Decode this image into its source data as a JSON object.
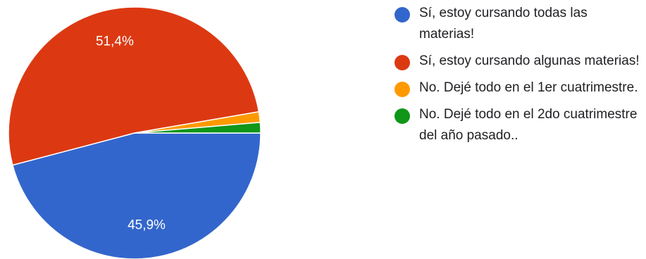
{
  "chart_data": {
    "type": "pie",
    "slices": [
      {
        "name": "Sí, estoy cursando todas las materias!",
        "value": 45.9,
        "label": "45,9%",
        "color": "#3366cc"
      },
      {
        "name": "Sí, estoy cursando algunas materias!",
        "value": 51.4,
        "label": "51,4%",
        "color": "#dc3912"
      },
      {
        "name": "No. Dejé todo en el 1er cuatrimestre.",
        "value": 1.35,
        "label": "",
        "color": "#ff9900"
      },
      {
        "name": "No. Dejé todo en el 2do cuatrimestre del año pasado..",
        "value": 1.35,
        "label": "",
        "color": "#109618"
      }
    ],
    "legend_position": "right"
  }
}
